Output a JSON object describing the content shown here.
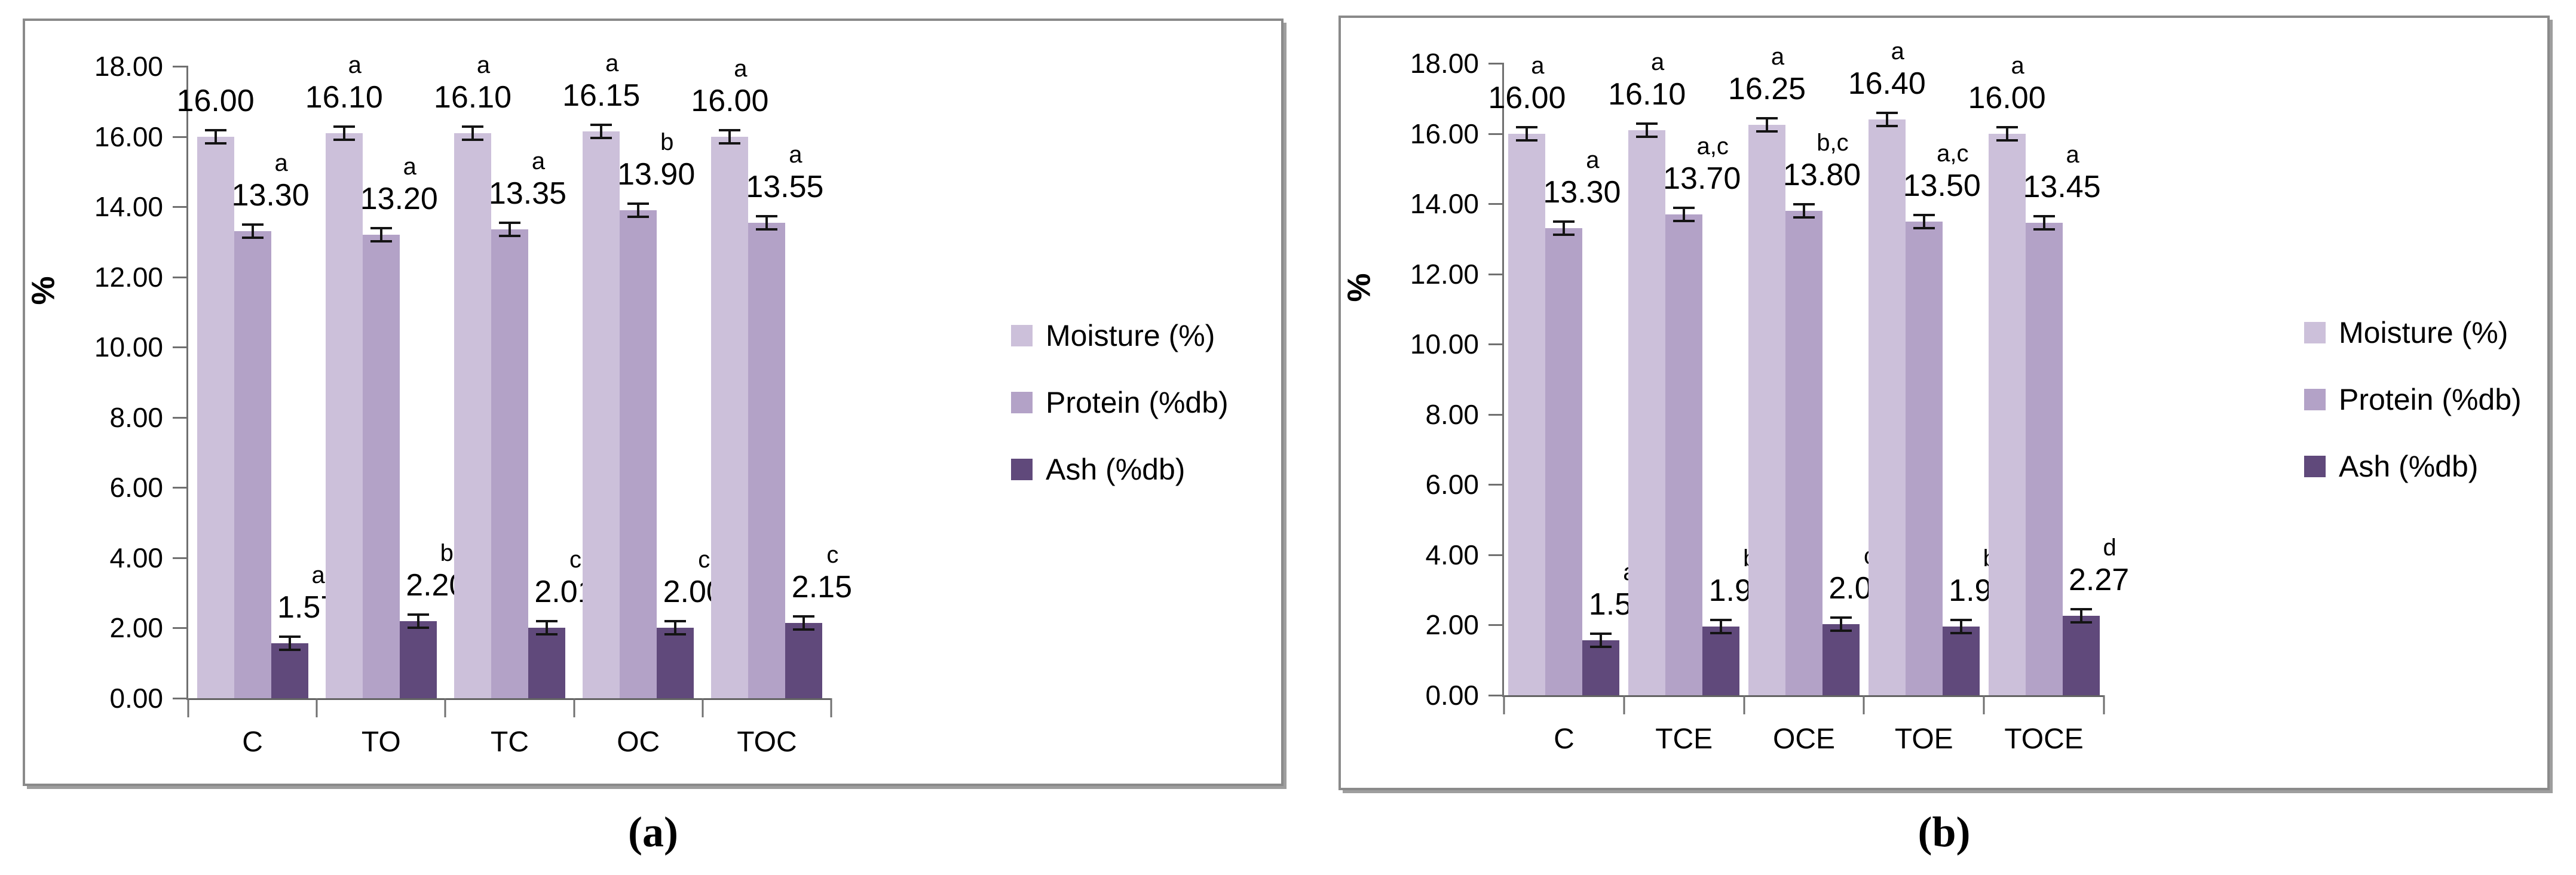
{
  "figure": {
    "background": "#ffffff",
    "axis_color": "#707070",
    "error_bar_color": "#141414",
    "panel_border_color": "#8a8a8a"
  },
  "chart_data": [
    {
      "type": "bar",
      "caption": "(a)",
      "ylabel": "%",
      "ylim": [
        0,
        18
      ],
      "y_ticks": [
        "18.00",
        "16.00",
        "14.00",
        "12.00",
        "10.00",
        "8.00",
        "6.00",
        "4.00",
        "2.00",
        "0.00"
      ],
      "grid": false,
      "legend_position": "right",
      "categories": [
        "C",
        "TO",
        "TC",
        "OC",
        "TOC"
      ],
      "series": [
        {
          "name": "Moisture (%)",
          "color": "#CCC0DA",
          "values": [
            16.0,
            16.1,
            16.1,
            16.15,
            16.0
          ],
          "value_labels": [
            "16.00",
            "16.10",
            "16.10",
            "16.15",
            "16.00"
          ],
          "letters": [
            "",
            "a",
            "a",
            "a",
            "a"
          ]
        },
        {
          "name": "Protein (%db)",
          "color": "#B3A2C7",
          "values": [
            13.3,
            13.2,
            13.35,
            13.9,
            13.55
          ],
          "value_labels": [
            "13.30",
            "13.20",
            "13.35",
            "13.90",
            "13.55"
          ],
          "letters": [
            "a",
            "a",
            "a",
            "b",
            "a"
          ]
        },
        {
          "name": "Ash (%db)",
          "color": "#60497B",
          "values": [
            1.57,
            2.2,
            2.01,
            2.0,
            2.15
          ],
          "value_labels": [
            "1.57",
            "2.20",
            "2.01",
            "2.00",
            "2.15"
          ],
          "letters": [
            "a",
            "b",
            "c",
            "c",
            "c"
          ]
        }
      ],
      "legend": [
        "Moisture (%)",
        "Protein (%db)",
        "Ash (%db)"
      ]
    },
    {
      "type": "bar",
      "caption": "(b)",
      "ylabel": "%",
      "ylim": [
        0,
        18
      ],
      "y_ticks": [
        "18.00",
        "16.00",
        "14.00",
        "12.00",
        "10.00",
        "8.00",
        "6.00",
        "4.00",
        "2.00",
        "0.00"
      ],
      "grid": false,
      "legend_position": "right",
      "categories": [
        "C",
        "TCE",
        "OCE",
        "TOE",
        "TOCE"
      ],
      "series": [
        {
          "name": "Moisture (%)",
          "color": "#CCC0DA",
          "values": [
            16.0,
            16.1,
            16.25,
            16.4,
            16.0
          ],
          "value_labels": [
            "16.00",
            "16.10",
            "16.25",
            "16.40",
            "16.00"
          ],
          "letters": [
            "a",
            "a",
            "a",
            "a",
            "a"
          ]
        },
        {
          "name": "Protein (%db)",
          "color": "#B3A2C7",
          "values": [
            13.3,
            13.7,
            13.8,
            13.5,
            13.45
          ],
          "value_labels": [
            "13.30",
            "13.70",
            "13.80",
            "13.50",
            "13.45"
          ],
          "letters": [
            "a",
            "a,c",
            "b,c",
            "a,c",
            "a"
          ]
        },
        {
          "name": "Ash (%db)",
          "color": "#60497B",
          "values": [
            1.57,
            1.96,
            2.03,
            1.96,
            2.27
          ],
          "value_labels": [
            "1.57",
            "1.96",
            "2.03",
            "1.96",
            "2.27"
          ],
          "letters": [
            "a",
            "b",
            "c",
            "b",
            "d"
          ]
        }
      ],
      "legend": [
        "Moisture (%)",
        "Protein (%db)",
        "Ash (%db)"
      ]
    }
  ]
}
